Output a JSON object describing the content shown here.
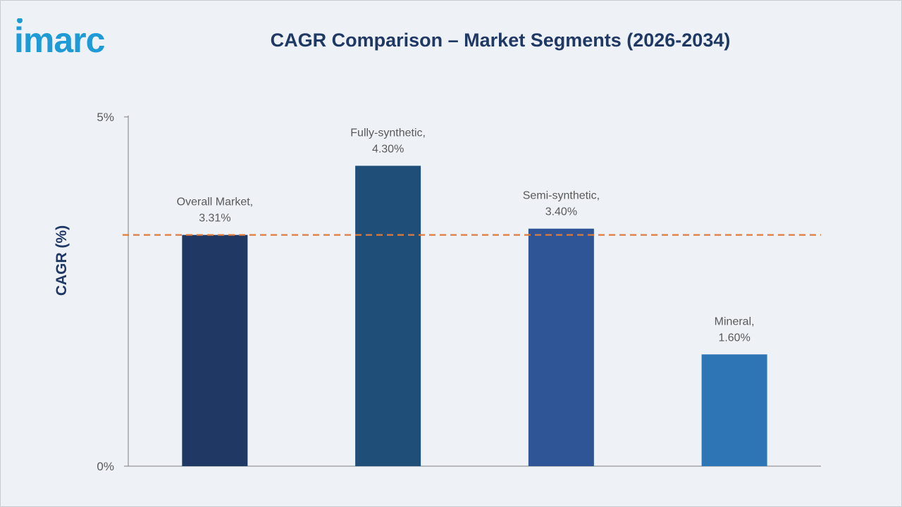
{
  "brand": {
    "logo_text": "imarc",
    "logo_color": "#1e9ad6"
  },
  "title": "CAGR Comparison – Market Segments (2026-2034)",
  "chart_data": {
    "type": "bar",
    "title": "CAGR Comparison – Market Segments (2026-2034)",
    "xlabel": "",
    "ylabel": "CAGR (%)",
    "ylim": [
      0,
      5
    ],
    "y_ticks": [
      "0%",
      "5%"
    ],
    "y_tick_values": [
      0,
      5
    ],
    "categories": [
      "Overall Market",
      "Fully-synthetic",
      "Semi-synthetic",
      "Mineral"
    ],
    "values": [
      3.31,
      4.3,
      3.4,
      1.6
    ],
    "data_labels": [
      [
        "Overall Market,",
        "3.31%"
      ],
      [
        "Fully-synthetic,",
        "4.30%"
      ],
      [
        "Semi-synthetic,",
        "3.40%"
      ],
      [
        "Mineral,",
        "1.60%"
      ]
    ],
    "bar_colors": [
      "#1f3864",
      "#1f4e79",
      "#2f5597",
      "#2e75b6"
    ],
    "reference_line": {
      "value": 3.31,
      "style": "dashed",
      "color": "#e07b39"
    },
    "grid": false,
    "legend": "none"
  },
  "colors": {
    "axis": "#7f7f7f",
    "tick_text": "#595959",
    "label_text": "#595959",
    "title": "#1f3864"
  }
}
